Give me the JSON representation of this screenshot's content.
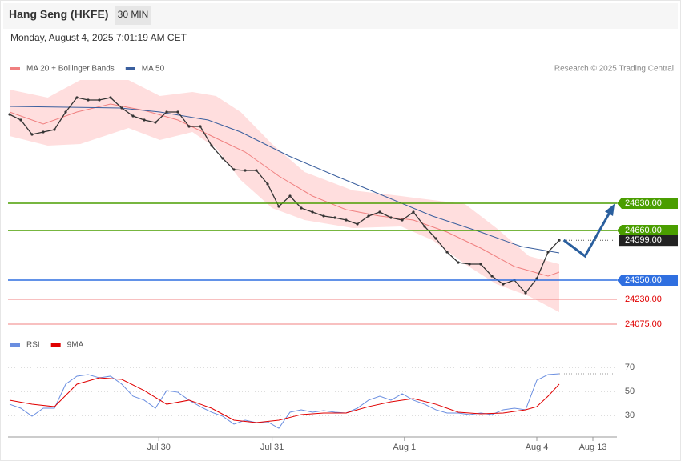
{
  "header": {
    "title": "Hang Seng (HKFE)",
    "timeframe": "30 MIN",
    "datetime": "Monday, August 4, 2025 7:01:19 AM CET"
  },
  "chart_data": [
    {
      "type": "line",
      "credit": "Research © 2025 Trading Central",
      "xlim": [
        0,
        54
      ],
      "ylim": [
        24050,
        25650
      ],
      "x": [
        0,
        1,
        2,
        3,
        4,
        5,
        6,
        7,
        8,
        9,
        10,
        11,
        12,
        13,
        14,
        15,
        16,
        17,
        18,
        19,
        20,
        21,
        22,
        23,
        24,
        25,
        26,
        27,
        28,
        29,
        30,
        31,
        32,
        33,
        34,
        35,
        36,
        37,
        38,
        39,
        40,
        41,
        42,
        43,
        44,
        45,
        46,
        47,
        48,
        49
      ],
      "values": [
        25385,
        25350,
        25260,
        25275,
        25290,
        25400,
        25490,
        25475,
        25475,
        25490,
        25425,
        25375,
        25350,
        25335,
        25400,
        25400,
        25310,
        25310,
        25190,
        25110,
        25040,
        25035,
        25035,
        24950,
        24810,
        24875,
        24800,
        24775,
        24750,
        24740,
        24725,
        24700,
        24750,
        24775,
        24740,
        24725,
        24775,
        24685,
        24610,
        24525,
        24460,
        24450,
        24450,
        24375,
        24325,
        24350,
        24270,
        24360,
        24525,
        24599
      ],
      "color": "#333333",
      "series": [
        {
          "name": "MA 20 + Bollinger Bands",
          "color": "#f08080",
          "x": [
            0,
            3,
            6,
            9,
            12,
            15,
            18,
            21,
            24,
            27,
            30,
            33,
            36,
            39,
            42,
            45,
            48,
            49
          ],
          "values": [
            25400,
            25325,
            25400,
            25450,
            25410,
            25350,
            25250,
            25150,
            25000,
            24875,
            24790,
            24750,
            24725,
            24650,
            24550,
            24435,
            24375,
            24400
          ]
        },
        {
          "name": "MA 50",
          "color": "#3a5f9e",
          "x": [
            0,
            9.9,
            13.4,
            17.7,
            20.6,
            24.9,
            29.1,
            33.4,
            37.7,
            42,
            45.6,
            47.7,
            49
          ],
          "values": [
            25435,
            25425,
            25400,
            25350,
            25275,
            25125,
            25000,
            24875,
            24750,
            24650,
            24560,
            24535,
            24520
          ]
        }
      ],
      "bollinger": {
        "color": "#ffd6d6",
        "x_upper": [
          0,
          3.4,
          6.3,
          10.6,
          13.4,
          16.3,
          18.4,
          20.6,
          23.4,
          26.3,
          30.6,
          34.9,
          37.7,
          40.6,
          43.4,
          46.3,
          49
        ],
        "upper": [
          25540,
          25490,
          25600,
          25600,
          25500,
          25525,
          25500,
          25400,
          25200,
          25025,
          24910,
          24875,
          24850,
          24825,
          24675,
          24500,
          24450
        ],
        "x_lower": [
          0,
          3.4,
          6.3,
          10.6,
          13.4,
          16.3,
          18.4,
          20.6,
          23.4,
          26.3,
          30.6,
          34.9,
          37.7,
          40.6,
          43.4,
          46.3,
          49
        ],
        "lower": [
          25250,
          25190,
          25200,
          25300,
          25225,
          25275,
          25175,
          24975,
          24800,
          24725,
          24675,
          24685,
          24600,
          24450,
          24325,
          24250,
          24150
        ]
      },
      "forecast": {
        "color": "#2a5f9e",
        "x": [
          49.4,
          51.3,
          53.8
        ],
        "values": [
          24600,
          24500,
          24810
        ]
      },
      "levels": [
        {
          "value": 24830,
          "label": "24830.00",
          "color": "#4a9e00",
          "boxed": true
        },
        {
          "value": 24660,
          "label": "24660.00",
          "color": "#4a9e00",
          "boxed": true
        },
        {
          "value": 24350,
          "label": "24350.00",
          "color": "#2f6fe0",
          "boxed": true
        },
        {
          "value": 24230,
          "label": "24230.00",
          "color": "#f08080",
          "boxed": false
        },
        {
          "value": 24075,
          "label": "24075.00",
          "color": "#f08080",
          "boxed": false
        }
      ],
      "last_price": {
        "value": 24599,
        "label": "24599.00",
        "color": "#222222"
      }
    },
    {
      "type": "line",
      "xlim": [
        0,
        54
      ],
      "ylim": [
        13,
        80
      ],
      "yticks": [
        30,
        50,
        70
      ],
      "grid": true,
      "xticks": [
        {
          "value": 13.3,
          "label": "Jul 30"
        },
        {
          "value": 23.4,
          "label": "Jul 31"
        },
        {
          "value": 35.2,
          "label": "Aug 1"
        },
        {
          "value": 47,
          "label": "Aug 4"
        },
        {
          "value": 52,
          "label": "Aug 13"
        }
      ],
      "series": [
        {
          "name": "RSI",
          "color": "#6a8ee0",
          "x": [
            0,
            1,
            2,
            3,
            4,
            5,
            6,
            7,
            8,
            9,
            10,
            11,
            12,
            13,
            14,
            15,
            16,
            17,
            18,
            19,
            20,
            21,
            22,
            23,
            24,
            25,
            26,
            27,
            28,
            29,
            30,
            31,
            32,
            33,
            34,
            35,
            36,
            37,
            38,
            39,
            40,
            41,
            42,
            43,
            44,
            45,
            46,
            47,
            48,
            49
          ],
          "values": [
            39.3,
            36,
            29.3,
            36,
            36,
            56,
            62.7,
            64,
            61.3,
            62.7,
            56,
            46,
            42.7,
            36,
            50.7,
            49.3,
            42.7,
            37.3,
            32.7,
            29.3,
            22.7,
            26,
            24,
            24.7,
            19.3,
            32.7,
            34.7,
            32.7,
            34,
            32.7,
            32,
            36,
            42.7,
            46,
            42.7,
            48,
            42.7,
            39.3,
            34.7,
            32,
            32,
            30.7,
            32,
            30.7,
            34.7,
            36,
            34.7,
            59.3,
            64,
            64.7
          ]
        },
        {
          "name": "9MA",
          "color": "#e00000",
          "x": [
            0,
            2,
            4,
            6,
            8,
            10,
            12,
            14,
            16,
            18,
            20,
            22,
            24,
            26,
            28,
            30,
            32,
            34,
            36,
            38,
            40,
            42,
            44,
            46,
            47,
            48,
            49
          ],
          "values": [
            42.7,
            39.3,
            37.3,
            56,
            61.3,
            60,
            50.7,
            39.3,
            42.7,
            36,
            26,
            24,
            26,
            30.7,
            32,
            32,
            37.3,
            41.3,
            44,
            39.3,
            32.7,
            31.3,
            32,
            34.7,
            37.3,
            46,
            56
          ]
        }
      ]
    }
  ]
}
